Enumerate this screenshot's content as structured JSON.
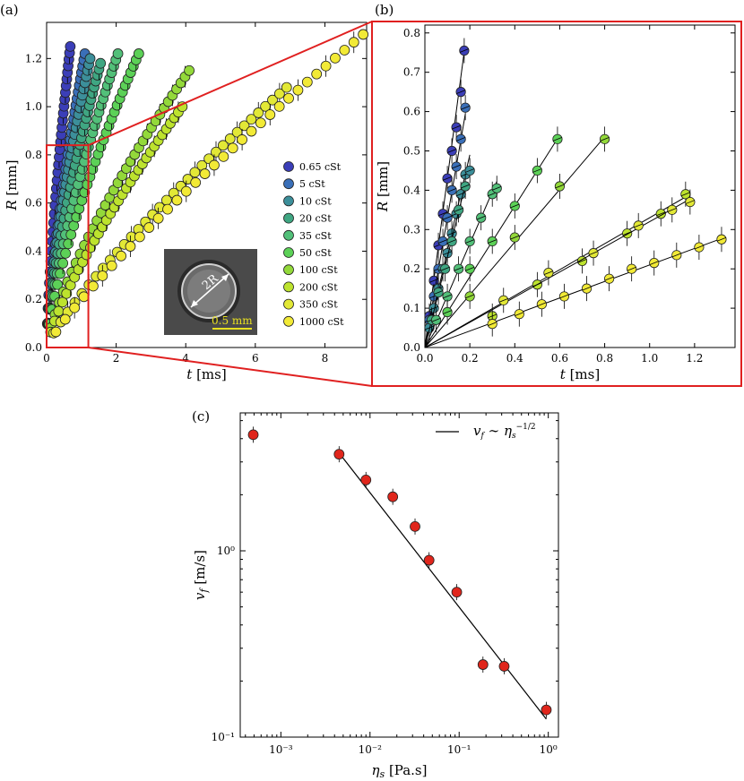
{
  "panels": {
    "a": "(a)",
    "b": "(b)",
    "c": "(c)"
  },
  "series_colors": [
    "#3b3eb8",
    "#3a6fb8",
    "#3c8f9a",
    "#3fa682",
    "#52c079",
    "#5cd157",
    "#93d93a",
    "#bde32e",
    "#e2e836",
    "#f2ea36"
  ],
  "chart_data": [
    {
      "panel": "a",
      "type": "scatter",
      "xlabel": "t [ms]",
      "ylabel": "R [mm]",
      "xlim": [
        0,
        9.2
      ],
      "ylim": [
        0,
        1.35
      ],
      "xticks": [
        0,
        2,
        4,
        6,
        8
      ],
      "yticks": [
        0.0,
        0.2,
        0.4,
        0.6,
        0.8,
        1.0,
        1.2
      ],
      "xticklabels": [
        "0",
        "2",
        "4",
        "6",
        "8"
      ],
      "yticklabels": [
        "0.0",
        "0.2",
        "0.4",
        "0.6",
        "0.8",
        "1.0",
        "1.2"
      ],
      "legend_position": "center-right",
      "series": [
        {
          "name": "0.65 cSt",
          "tmax": 0.68,
          "rmax": 1.25
        },
        {
          "name": "5 cSt",
          "tmax": 1.1,
          "rmax": 1.22
        },
        {
          "name": "10 cSt",
          "tmax": 1.25,
          "rmax": 1.2
        },
        {
          "name": "20 cSt",
          "tmax": 1.55,
          "rmax": 1.18
        },
        {
          "name": "35 cSt",
          "tmax": 2.05,
          "rmax": 1.22
        },
        {
          "name": "50 cSt",
          "tmax": 2.65,
          "rmax": 1.22
        },
        {
          "name": "100 cSt",
          "tmax": 4.1,
          "rmax": 1.15
        },
        {
          "name": "200 cSt",
          "tmax": 3.9,
          "rmax": 1.0
        },
        {
          "name": "350 cSt",
          "tmax": 6.9,
          "rmax": 1.08
        },
        {
          "name": "1000 cSt",
          "tmax": 9.1,
          "rmax": 1.3
        }
      ],
      "inset": {
        "label_diameter": "2R",
        "scale_bar": "0.5 mm"
      }
    },
    {
      "panel": "b",
      "type": "scatter",
      "xlabel": "t [ms]",
      "ylabel": "R [mm]",
      "xlim": [
        0,
        1.38
      ],
      "ylim": [
        0,
        0.82
      ],
      "xticks": [
        0.0,
        0.2,
        0.4,
        0.6,
        0.8,
        1.0,
        1.2
      ],
      "yticks": [
        0.0,
        0.1,
        0.2,
        0.3,
        0.4,
        0.5,
        0.6,
        0.7,
        0.8
      ],
      "xticklabels": [
        "0.0",
        "0.2",
        "0.4",
        "0.6",
        "0.8",
        "1.0",
        "1.2"
      ],
      "yticklabels": [
        "0.0",
        "0.1",
        "0.2",
        "0.3",
        "0.4",
        "0.5",
        "0.6",
        "0.7",
        "0.8"
      ],
      "series": [
        {
          "name": "0.65 cSt",
          "slope": 4.3,
          "x": [
            0.02,
            0.04,
            0.06,
            0.08,
            0.1,
            0.12,
            0.14,
            0.16,
            0.175
          ],
          "y": [
            0.08,
            0.17,
            0.26,
            0.34,
            0.43,
            0.5,
            0.56,
            0.65,
            0.755
          ]
        },
        {
          "name": "5 cSt",
          "slope": 3.3,
          "x": [
            0.02,
            0.04,
            0.06,
            0.08,
            0.1,
            0.12,
            0.14,
            0.16,
            0.18
          ],
          "y": [
            0.07,
            0.13,
            0.2,
            0.27,
            0.33,
            0.4,
            0.46,
            0.53,
            0.61
          ]
        },
        {
          "name": "10 cSt",
          "slope": 2.45,
          "x": [
            0.02,
            0.04,
            0.06,
            0.08,
            0.1,
            0.12,
            0.14,
            0.16,
            0.18,
            0.2
          ],
          "y": [
            0.05,
            0.1,
            0.15,
            0.2,
            0.24,
            0.29,
            0.34,
            0.39,
            0.44,
            0.45
          ]
        },
        {
          "name": "20 cSt",
          "slope": 2.3,
          "x": [
            0.03,
            0.06,
            0.09,
            0.12,
            0.15,
            0.18
          ],
          "y": [
            0.07,
            0.14,
            0.2,
            0.27,
            0.35,
            0.41
          ]
        },
        {
          "name": "35 cSt",
          "slope": 1.32,
          "x": [
            0.05,
            0.1,
            0.15,
            0.2,
            0.25,
            0.3,
            0.32
          ],
          "y": [
            0.07,
            0.13,
            0.2,
            0.27,
            0.33,
            0.39,
            0.405
          ]
        },
        {
          "name": "50 cSt",
          "slope": 0.9,
          "x": [
            0.1,
            0.2,
            0.3,
            0.4,
            0.5,
            0.59
          ],
          "y": [
            0.09,
            0.2,
            0.27,
            0.36,
            0.45,
            0.53
          ]
        },
        {
          "name": "100 cSt",
          "slope": 0.67,
          "x": [
            0.2,
            0.4,
            0.6,
            0.8
          ],
          "y": [
            0.13,
            0.28,
            0.41,
            0.53
          ]
        },
        {
          "name": "200 cSt",
          "slope": 0.33,
          "x": [
            0.3,
            0.5,
            0.7,
            0.9,
            1.05,
            1.16
          ],
          "y": [
            0.08,
            0.16,
            0.22,
            0.29,
            0.34,
            0.39
          ]
        },
        {
          "name": "350 cSt",
          "slope": 0.32,
          "x": [
            0.35,
            0.55,
            0.75,
            0.95,
            1.1,
            1.18
          ],
          "y": [
            0.12,
            0.19,
            0.24,
            0.31,
            0.35,
            0.37
          ]
        },
        {
          "name": "1000 cSt",
          "slope": 0.21,
          "x": [
            0.3,
            0.42,
            0.52,
            0.62,
            0.72,
            0.82,
            0.92,
            1.02,
            1.12,
            1.22,
            1.32
          ],
          "y": [
            0.06,
            0.085,
            0.11,
            0.13,
            0.15,
            0.175,
            0.2,
            0.215,
            0.235,
            0.255,
            0.275
          ]
        }
      ]
    },
    {
      "panel": "c",
      "type": "scatter",
      "xscale": "log",
      "yscale": "log",
      "xlabel": "η_s [Pa.s]",
      "ylabel": "v_f [m/s]",
      "xlim": [
        0.00035,
        1.3
      ],
      "ylim": [
        0.1,
        5.5
      ],
      "xticks": [
        0.001,
        0.01,
        0.1,
        1.0
      ],
      "xticklabels": [
        "10⁻³",
        "10⁻²",
        "10⁻¹",
        "10⁰"
      ],
      "yticks": [
        0.1,
        1.0
      ],
      "yticklabels": [
        "10⁻¹",
        "10⁰"
      ],
      "x": [
        0.00049,
        0.0045,
        0.009,
        0.018,
        0.032,
        0.046,
        0.094,
        0.185,
        0.32,
        0.95
      ],
      "y": [
        4.2,
        3.3,
        2.4,
        1.95,
        1.35,
        0.89,
        0.6,
        0.245,
        0.24,
        0.14
      ],
      "fit": {
        "label": "v_f ~ η_s^(-1/2)",
        "x": [
          0.0045,
          0.95
        ],
        "y": [
          3.35,
          0.125
        ]
      },
      "legend_position": "top-right"
    }
  ]
}
